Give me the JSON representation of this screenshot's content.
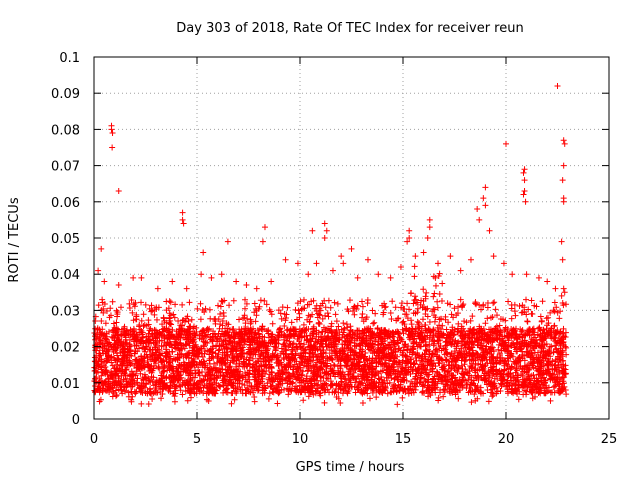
{
  "chart_data": {
    "type": "scatter",
    "title": "Day 303 of 2018, Rate Of TEC Index for receiver reun",
    "xlabel": "GPS time / hours",
    "ylabel": "ROTI / TECUs",
    "xlim": [
      0,
      25
    ],
    "ylim": [
      0,
      0.1
    ],
    "xticks": [
      "0",
      "5",
      "10",
      "15",
      "20",
      "25"
    ],
    "yticks": [
      "0",
      "0.01",
      "0.02",
      "0.03",
      "0.04",
      "0.05",
      "0.06",
      "0.07",
      "0.08",
      "0.09",
      "0.1"
    ],
    "grid": true,
    "marker": "+",
    "color": "#ff0000",
    "series": [
      {
        "points": [
          [
            0.35,
            0.047
          ],
          [
            0.85,
            0.081
          ],
          [
            0.85,
            0.08
          ],
          [
            0.9,
            0.079
          ],
          [
            0.88,
            0.075
          ],
          [
            1.2,
            0.063
          ],
          [
            4.3,
            0.057
          ],
          [
            4.3,
            0.055
          ],
          [
            4.35,
            0.054
          ],
          [
            6.5,
            0.049
          ],
          [
            5.3,
            0.046
          ],
          [
            8.3,
            0.053
          ],
          [
            8.2,
            0.049
          ],
          [
            10.6,
            0.052
          ],
          [
            11.2,
            0.054
          ],
          [
            11.3,
            0.052
          ],
          [
            11.2,
            0.05
          ],
          [
            12.5,
            0.047
          ],
          [
            12.0,
            0.045
          ],
          [
            15.3,
            0.052
          ],
          [
            15.3,
            0.05
          ],
          [
            15.2,
            0.049
          ],
          [
            16.3,
            0.055
          ],
          [
            16.3,
            0.053
          ],
          [
            16.2,
            0.05
          ],
          [
            18.6,
            0.058
          ],
          [
            18.7,
            0.055
          ],
          [
            19.0,
            0.064
          ],
          [
            18.9,
            0.061
          ],
          [
            19.0,
            0.059
          ],
          [
            19.2,
            0.052
          ],
          [
            20.0,
            0.076
          ],
          [
            20.9,
            0.069
          ],
          [
            20.85,
            0.068
          ],
          [
            20.9,
            0.066
          ],
          [
            20.9,
            0.063
          ],
          [
            20.85,
            0.062
          ],
          [
            20.95,
            0.06
          ],
          [
            22.5,
            0.092
          ],
          [
            22.8,
            0.077
          ],
          [
            22.85,
            0.076
          ],
          [
            22.8,
            0.07
          ],
          [
            22.75,
            0.066
          ],
          [
            22.8,
            0.061
          ],
          [
            22.8,
            0.06
          ],
          [
            22.7,
            0.049
          ],
          [
            22.75,
            0.044
          ],
          [
            22.8,
            0.036
          ],
          [
            22.85,
            0.035
          ],
          [
            22.7,
            0.034
          ],
          [
            0.2,
            0.041
          ],
          [
            0.5,
            0.038
          ],
          [
            1.2,
            0.037
          ],
          [
            1.9,
            0.039
          ],
          [
            2.3,
            0.039
          ],
          [
            3.1,
            0.036
          ],
          [
            3.8,
            0.038
          ],
          [
            4.5,
            0.036
          ],
          [
            5.2,
            0.04
          ],
          [
            5.7,
            0.039
          ],
          [
            6.2,
            0.04
          ],
          [
            6.9,
            0.038
          ],
          [
            7.4,
            0.037
          ],
          [
            7.9,
            0.036
          ],
          [
            8.6,
            0.038
          ],
          [
            9.3,
            0.044
          ],
          [
            9.9,
            0.043
          ],
          [
            10.4,
            0.04
          ],
          [
            10.8,
            0.043
          ],
          [
            11.6,
            0.041
          ],
          [
            12.1,
            0.043
          ],
          [
            12.8,
            0.039
          ],
          [
            13.3,
            0.044
          ],
          [
            13.8,
            0.04
          ],
          [
            14.4,
            0.039
          ],
          [
            14.9,
            0.042
          ],
          [
            15.6,
            0.045
          ],
          [
            16.0,
            0.046
          ],
          [
            16.7,
            0.043
          ],
          [
            17.3,
            0.045
          ],
          [
            17.8,
            0.041
          ],
          [
            18.3,
            0.044
          ],
          [
            19.4,
            0.045
          ],
          [
            19.9,
            0.043
          ],
          [
            20.3,
            0.04
          ],
          [
            21.0,
            0.04
          ],
          [
            21.6,
            0.039
          ],
          [
            22.0,
            0.038
          ],
          [
            22.4,
            0.036
          ]
        ]
      }
    ]
  }
}
